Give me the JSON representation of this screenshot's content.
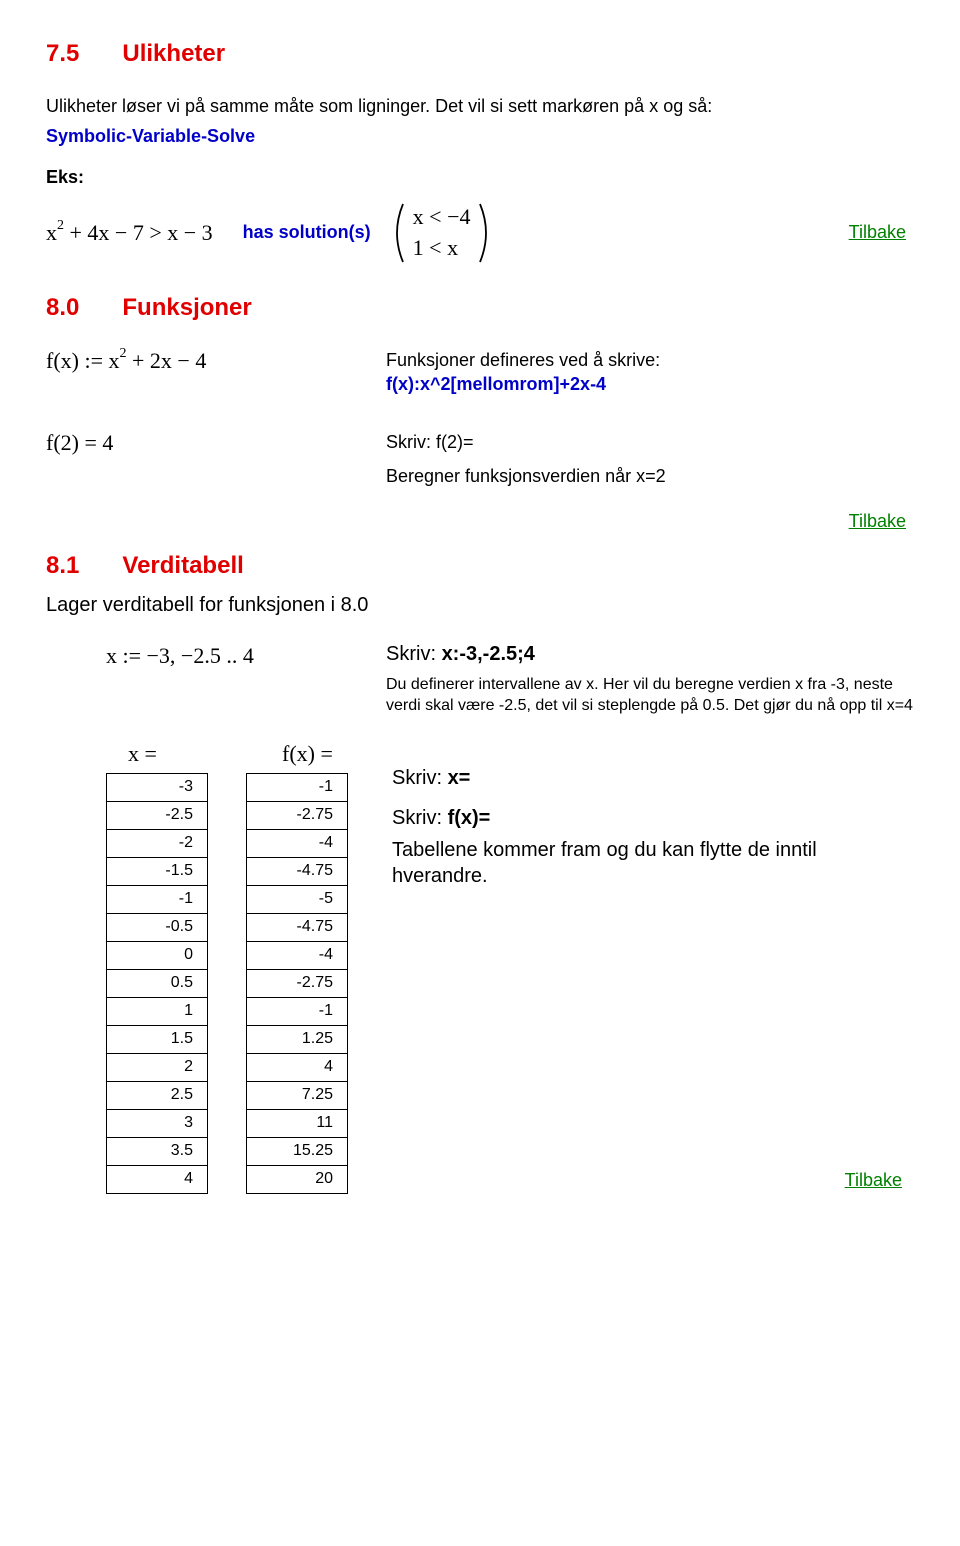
{
  "s75": {
    "num": "7.5",
    "title": "Ulikheter",
    "intro": "Ulikheter løser vi på samme måte som ligninger. Det vil si sett markøren på x og så:",
    "method": "Symbolic-Variable-Solve",
    "eks": "Eks:",
    "eq_left_a": "x",
    "eq_left_b": " + 4x − 7 > x − 3",
    "has_sol": "has solution(s)",
    "sol_top": "x < −4",
    "sol_bot": "1 < x",
    "tilbake": "Tilbake"
  },
  "s80": {
    "num": "8.0",
    "title": "Funksjoner",
    "fdef_a": "f(x) := x",
    "fdef_b": " + 2x − 4",
    "defnote_1": "Funksjoner defineres ved å skrive:",
    "defnote_2": "f(x):x^2[mellomrom]+2x-4",
    "f2l": "f(2) = 4",
    "f2r1": "Skriv: f(2)=",
    "f2r2": "Beregner funksjonsverdien når x=2",
    "tilbake": "Tilbake"
  },
  "s81": {
    "num": "8.1",
    "title": "Verditabell",
    "lager": "Lager verditabell for funksjonen i 8.0",
    "xdef": "x := −3, −2.5 .. 4",
    "skriv_label": "Skriv:  ",
    "skriv_val": "x:-3,-2.5;4",
    "desc": "Du definerer intervallene av x. Her vil du beregne verdien x fra -3, neste verdi skal være -2.5, det vil si steplengde på 0.5. Det gjør du nå opp til x=4",
    "xhead": "x =",
    "fxhead": "f(x) =",
    "xvals": [
      "-3",
      "-2.5",
      "-2",
      "-1.5",
      "-1",
      "-0.5",
      "0",
      "0.5",
      "1",
      "1.5",
      "2",
      "2.5",
      "3",
      "3.5",
      "4"
    ],
    "fxvals": [
      "-1",
      "-2.75",
      "-4",
      "-4.75",
      "-5",
      "-4.75",
      "-4",
      "-2.75",
      "-1",
      "1.25",
      "4",
      "7.25",
      "11",
      "15.25",
      "20"
    ],
    "r1a": "Skriv: ",
    "r1b": "x=",
    "r2a": "Skriv: ",
    "r2b": "f(x)=",
    "r3": "Tabellene kommer fram og du kan flytte de inntil hverandre.",
    "tilbake": "Tilbake"
  }
}
